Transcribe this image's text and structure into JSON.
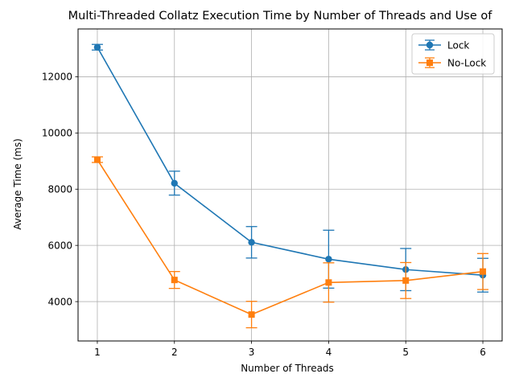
{
  "chart_data": {
    "type": "line",
    "title": "Multi-Threaded Collatz Execution Time by Number of Threads and Use of",
    "xlabel": "Number of Threads",
    "ylabel": "Average Time (ms)",
    "x": [
      1,
      2,
      3,
      4,
      5,
      6
    ],
    "xlim": [
      0.75,
      6.25
    ],
    "ylim": [
      2600,
      13700
    ],
    "xticks": [
      1,
      2,
      3,
      4,
      5,
      6
    ],
    "yticks": [
      4000,
      6000,
      8000,
      10000,
      12000
    ],
    "grid": true,
    "legend_position": "top-right",
    "series": [
      {
        "name": "Lock",
        "color": "#1f77b4",
        "marker": "circle",
        "values": [
          13050,
          8210,
          6110,
          5510,
          5140,
          4940
        ],
        "err_low": [
          12950,
          7790,
          5550,
          4480,
          4390,
          4340
        ],
        "err_high": [
          13150,
          8640,
          6670,
          6540,
          5890,
          5540
        ]
      },
      {
        "name": "No-Lock",
        "color": "#ff7f0e",
        "marker": "square",
        "values": [
          9050,
          4770,
          3540,
          4680,
          4750,
          5070
        ],
        "err_low": [
          8950,
          4470,
          3070,
          3980,
          4110,
          4430
        ],
        "err_high": [
          9150,
          5070,
          4010,
          5380,
          5390,
          5710
        ]
      }
    ]
  }
}
